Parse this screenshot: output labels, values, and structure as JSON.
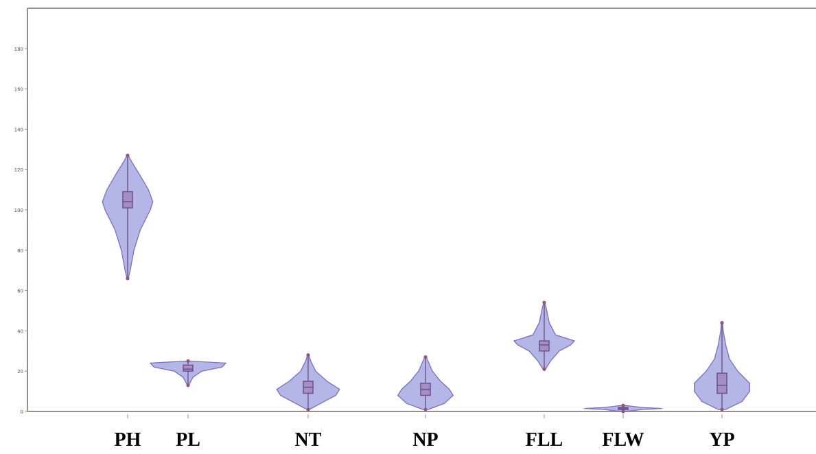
{
  "chart_data": {
    "type": "violin",
    "categories": [
      "PH",
      "PL",
      "NT",
      "NP",
      "FLL",
      "FLW",
      "YP"
    ],
    "ylim": [
      0,
      200
    ],
    "yticks": [
      0,
      20,
      40,
      60,
      80,
      100,
      120,
      140,
      160,
      180
    ],
    "ytick_labels": [
      "0",
      "20",
      "40",
      "60",
      "80",
      "100",
      "120",
      "140",
      "160",
      "180"
    ],
    "grid": false,
    "series": [
      {
        "category": "PH",
        "min": 66,
        "q1": 101,
        "median": 104,
        "q3": 109,
        "max": 127,
        "density": [
          [
            66,
            1
          ],
          [
            70,
            4
          ],
          [
            80,
            10
          ],
          [
            90,
            20
          ],
          [
            100,
            36
          ],
          [
            104,
            40
          ],
          [
            110,
            33
          ],
          [
            118,
            18
          ],
          [
            124,
            6
          ],
          [
            127,
            1
          ]
        ]
      },
      {
        "category": "PL",
        "min": 13,
        "q1": 20,
        "median": 21,
        "q3": 23,
        "max": 25,
        "density": [
          [
            13,
            1
          ],
          [
            17,
            8
          ],
          [
            20,
            22
          ],
          [
            22,
            54
          ],
          [
            24,
            60
          ],
          [
            25,
            2
          ]
        ]
      },
      {
        "category": "NT",
        "min": 1,
        "q1": 9,
        "median": 12,
        "q3": 15,
        "max": 28,
        "density": [
          [
            1,
            2
          ],
          [
            4,
            20
          ],
          [
            8,
            44
          ],
          [
            11,
            50
          ],
          [
            15,
            30
          ],
          [
            20,
            12
          ],
          [
            25,
            4
          ],
          [
            28,
            1
          ]
        ]
      },
      {
        "category": "NP",
        "min": 1,
        "q1": 8,
        "median": 11,
        "q3": 14,
        "max": 27,
        "density": [
          [
            1,
            4
          ],
          [
            4,
            30
          ],
          [
            8,
            44
          ],
          [
            11,
            38
          ],
          [
            15,
            24
          ],
          [
            20,
            11
          ],
          [
            25,
            4
          ],
          [
            27,
            1
          ]
        ]
      },
      {
        "category": "FLL",
        "min": 21,
        "q1": 30,
        "median": 33,
        "q3": 35,
        "max": 54,
        "density": [
          [
            21,
            2
          ],
          [
            25,
            10
          ],
          [
            30,
            24
          ],
          [
            33,
            42
          ],
          [
            35,
            48
          ],
          [
            38,
            18
          ],
          [
            44,
            8
          ],
          [
            50,
            4
          ],
          [
            54,
            1
          ]
        ]
      },
      {
        "category": "FLW",
        "min": 0,
        "q1": 1,
        "median": 1.5,
        "q3": 2,
        "max": 3,
        "density": [
          [
            0,
            3
          ],
          [
            1,
            30
          ],
          [
            1.5,
            62
          ],
          [
            2,
            30
          ],
          [
            3,
            3
          ]
        ]
      },
      {
        "category": "YP",
        "min": 1,
        "q1": 9,
        "median": 13,
        "q3": 19,
        "max": 44,
        "density": [
          [
            1,
            6
          ],
          [
            5,
            32
          ],
          [
            10,
            44
          ],
          [
            14,
            44
          ],
          [
            20,
            25
          ],
          [
            26,
            12
          ],
          [
            33,
            6
          ],
          [
            40,
            2
          ],
          [
            44,
            1
          ]
        ]
      }
    ]
  }
}
